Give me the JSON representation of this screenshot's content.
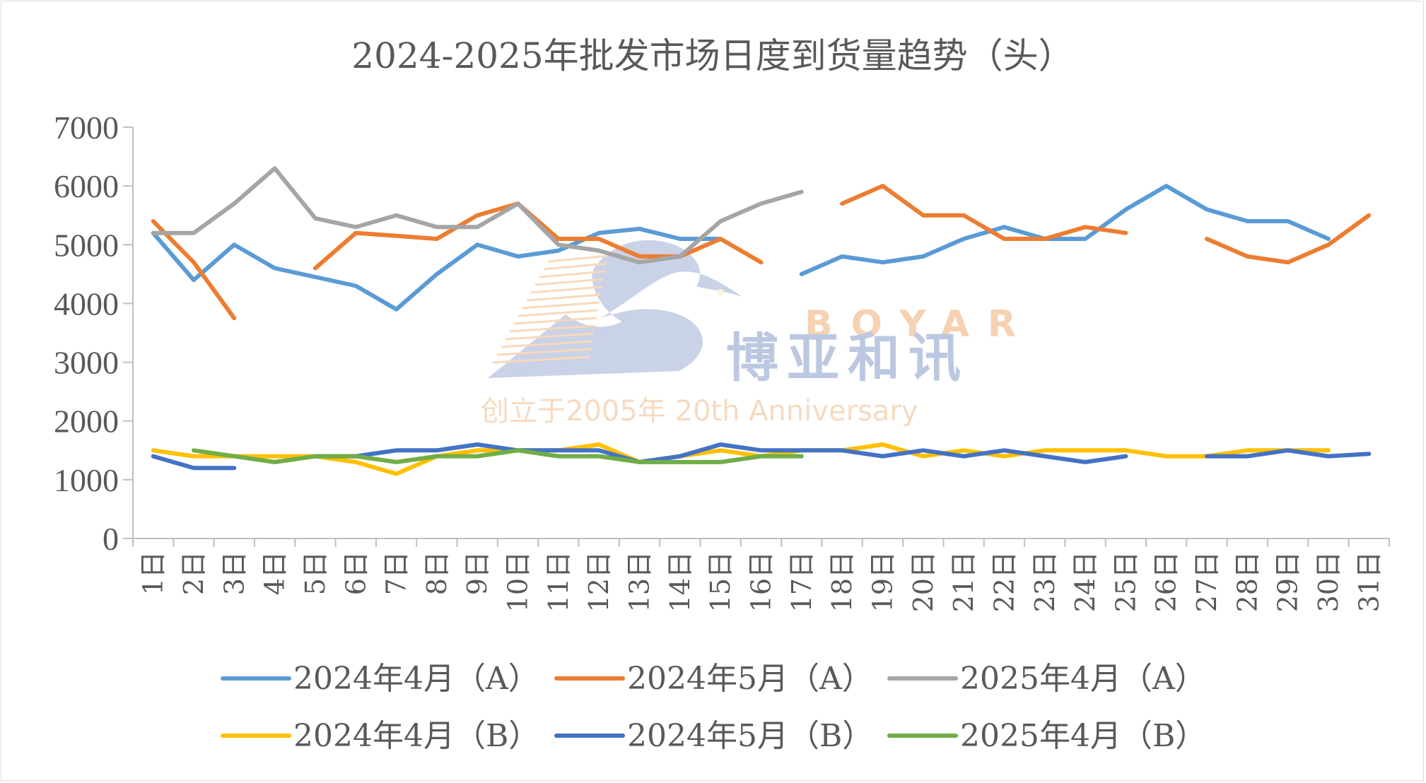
{
  "chart_data": {
    "type": "line",
    "title": "2024-2025年批发市场日度到货量趋势（头）",
    "categories": [
      "1日",
      "2日",
      "3日",
      "4日",
      "5日",
      "6日",
      "7日",
      "8日",
      "9日",
      "10日",
      "11日",
      "12日",
      "13日",
      "14日",
      "15日",
      "16日",
      "17日",
      "18日",
      "19日",
      "20日",
      "21日",
      "22日",
      "23日",
      "24日",
      "25日",
      "26日",
      "27日",
      "28日",
      "29日",
      "30日",
      "31日"
    ],
    "ylim": [
      0,
      7000
    ],
    "yticks": [
      "0",
      "1000",
      "2000",
      "3000",
      "4000",
      "5000",
      "6000",
      "7000"
    ],
    "grid": false,
    "legend_position": "bottom",
    "series": [
      {
        "name": "2024年4月（A）",
        "color": "#5b9bd5",
        "values": [
          5200,
          4400,
          5000,
          4600,
          4450,
          4300,
          3900,
          4500,
          5000,
          4800,
          4900,
          5200,
          5270,
          5100,
          5100,
          null,
          4500,
          4800,
          4700,
          4800,
          5100,
          5300,
          5100,
          5100,
          5600,
          6000,
          5600,
          5400,
          5400,
          5100,
          null
        ]
      },
      {
        "name": "2024年5月（A）",
        "color": "#ed7d31",
        "values": [
          5400,
          4700,
          3750,
          null,
          4600,
          5200,
          5150,
          5100,
          5500,
          5700,
          5100,
          5100,
          4800,
          4800,
          5100,
          4700,
          null,
          5700,
          6000,
          5500,
          5500,
          5100,
          5100,
          5300,
          5200,
          null,
          5100,
          4800,
          4700,
          5000,
          5500
        ]
      },
      {
        "name": "2025年4月（A）",
        "color": "#a5a5a5",
        "values": [
          5200,
          5200,
          5700,
          6300,
          5450,
          5300,
          5500,
          5300,
          5300,
          5700,
          5000,
          4900,
          4700,
          4800,
          5400,
          5700,
          5900,
          null,
          null,
          null,
          null,
          null,
          null,
          null,
          null,
          null,
          null,
          null,
          null,
          null,
          null
        ]
      },
      {
        "name": "2024年4月（B）",
        "color": "#ffc000",
        "values": [
          1500,
          1400,
          1400,
          1400,
          1400,
          1300,
          1100,
          1400,
          1500,
          1500,
          1500,
          1600,
          1300,
          1400,
          1500,
          1400,
          1500,
          1500,
          1600,
          1400,
          1500,
          1400,
          1500,
          1500,
          1500,
          1400,
          1400,
          1500,
          1500,
          1500,
          null
        ]
      },
      {
        "name": "2024年5月（B）",
        "color": "#4472c4",
        "values": [
          1400,
          1200,
          1200,
          null,
          1400,
          1400,
          1500,
          1500,
          1600,
          1500,
          1500,
          1500,
          1300,
          1400,
          1600,
          1500,
          1500,
          1500,
          1400,
          1500,
          1400,
          1500,
          1400,
          1300,
          1400,
          null,
          1400,
          1400,
          1500,
          1400,
          1440
        ]
      },
      {
        "name": "2025年4月（B）",
        "color": "#70ad47",
        "values": [
          null,
          1500,
          1400,
          1300,
          1400,
          1400,
          1300,
          1400,
          1400,
          1500,
          1400,
          1400,
          1300,
          1300,
          1300,
          1400,
          1400,
          null,
          null,
          null,
          null,
          null,
          null,
          null,
          null,
          null,
          null,
          null,
          null,
          null,
          null
        ]
      }
    ]
  },
  "watermark": {
    "brand_en": "BOYAR",
    "brand_cn": "博亚和讯",
    "tagline": "创立于2005年 20th Anniversary"
  }
}
